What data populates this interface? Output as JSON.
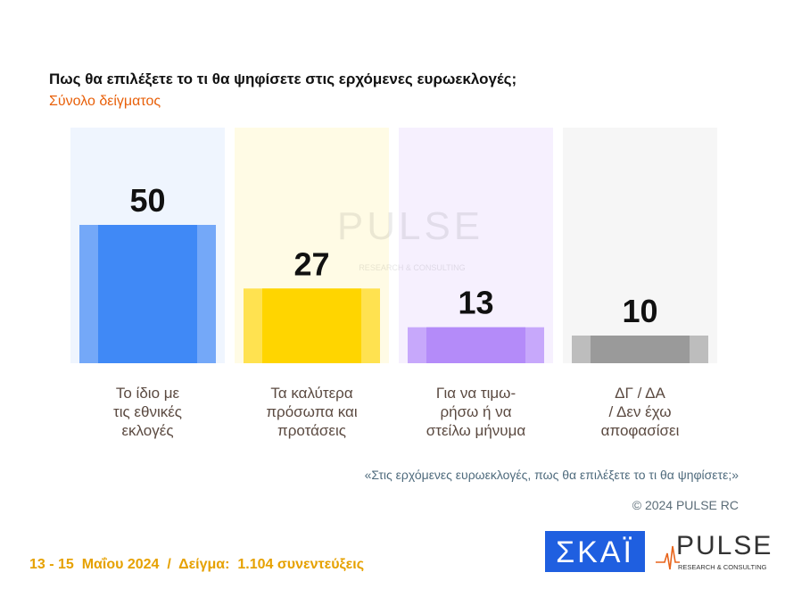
{
  "chart_data": {
    "type": "bar",
    "title": "Πως θα επιλέξετε το τι θα ψηφίσετε στις ερχόμενες ευρωεκλογές;",
    "subtitle": "Σύνολο δείγματος",
    "categories": [
      "Το ίδιο με\nτις εθνικές\nεκλογές",
      "Τα καλύτερα\nπρόσωπα και\nπροτάσεις",
      "Για να τιμω-\nρήσω ή να\nστείλω μήνυμα",
      "ΔΓ / ΔΑ\n/ Δεν έχω\nαποφασίσει"
    ],
    "values": [
      50,
      27,
      13,
      10
    ],
    "colors": [
      "#4089f6",
      "#ffd500",
      "#b48bf9",
      "#9a9a9a"
    ],
    "edge_colors": [
      "#74a8f8",
      "#ffe250",
      "#c7a8fb",
      "#bdbdbd"
    ],
    "panel_colors": [
      "#eff5fe",
      "#fffbe5",
      "#f6f0fe",
      "#f6f6f6"
    ],
    "note": "«Στις ερχόμενες ευρωεκλογές, πως θα επιλέξετε το τι θα ψηφίσετε;»",
    "copyright": "© 2024 PULSE RC",
    "footer": "13 - 15  Μαΐου 2024  /  Δείγμα:  1.104 συνεντεύξεις"
  },
  "logos": {
    "broadcaster": "ΣΚΑΪ",
    "pulse": "PULSE",
    "pulse_tagline": "RESEARCH & CONSULTING"
  }
}
